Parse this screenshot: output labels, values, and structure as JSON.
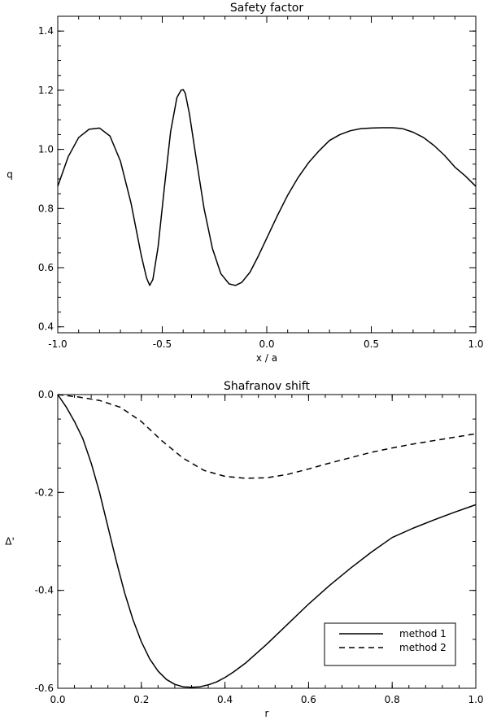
{
  "chart_data": [
    {
      "type": "line",
      "title": "Safety factor",
      "xlabel": "x / a",
      "ylabel": "q",
      "xlim": [
        -1.0,
        1.0
      ],
      "ylim": [
        0.38,
        1.45
      ],
      "xticks": [
        -1.0,
        -0.5,
        0.0,
        0.5,
        1.0
      ],
      "xtick_labels": [
        "-1.0",
        "-0.5",
        "0.0",
        "0.5",
        "1.0"
      ],
      "yticks": [
        0.4,
        0.6,
        0.8,
        1.0,
        1.2,
        1.4
      ],
      "ytick_labels": [
        "0.4",
        "0.6",
        "0.8",
        "1.0",
        "1.2",
        "1.4"
      ],
      "series": [
        {
          "style": "solid",
          "x": [
            -1.0,
            -0.95,
            -0.9,
            -0.85,
            -0.8,
            -0.75,
            -0.7,
            -0.65,
            -0.6,
            -0.575,
            -0.56,
            -0.545,
            -0.52,
            -0.49,
            -0.46,
            -0.43,
            -0.41,
            -0.4,
            -0.39,
            -0.37,
            -0.34,
            -0.3,
            -0.26,
            -0.22,
            -0.18,
            -0.15,
            -0.12,
            -0.08,
            -0.04,
            0.0,
            0.05,
            0.1,
            0.15,
            0.2,
            0.25,
            0.3,
            0.35,
            0.4,
            0.45,
            0.5,
            0.55,
            0.6,
            0.62,
            0.65,
            0.7,
            0.75,
            0.8,
            0.85,
            0.9,
            0.95,
            1.0
          ],
          "y": [
            0.875,
            0.975,
            1.04,
            1.068,
            1.072,
            1.045,
            0.96,
            0.82,
            0.64,
            0.565,
            0.54,
            0.56,
            0.67,
            0.87,
            1.06,
            1.175,
            1.2,
            1.202,
            1.19,
            1.12,
            0.98,
            0.8,
            0.665,
            0.58,
            0.545,
            0.54,
            0.55,
            0.585,
            0.64,
            0.7,
            0.775,
            0.845,
            0.905,
            0.955,
            0.995,
            1.03,
            1.05,
            1.063,
            1.07,
            1.072,
            1.073,
            1.073,
            1.072,
            1.07,
            1.058,
            1.04,
            1.013,
            0.98,
            0.94,
            0.91,
            0.875
          ]
        }
      ],
      "legend": null
    },
    {
      "type": "line",
      "title": "Shafranov shift",
      "xlabel": "r",
      "ylabel": "Δ'",
      "xlim": [
        0.0,
        1.0
      ],
      "ylim": [
        -0.6,
        0.0
      ],
      "xticks": [
        0.0,
        0.2,
        0.4,
        0.6,
        0.8,
        1.0
      ],
      "xtick_labels": [
        "0.0",
        "0.2",
        "0.4",
        "0.6",
        "0.8",
        "1.0"
      ],
      "yticks": [
        0.0,
        -0.2,
        -0.4,
        -0.6
      ],
      "ytick_labels": [
        "0.0",
        "-0.2",
        "-0.4",
        "-0.6"
      ],
      "series": [
        {
          "name": "method 1",
          "style": "solid",
          "x": [
            0.0,
            0.02,
            0.04,
            0.06,
            0.08,
            0.1,
            0.12,
            0.14,
            0.16,
            0.18,
            0.2,
            0.22,
            0.24,
            0.26,
            0.28,
            0.3,
            0.32,
            0.34,
            0.36,
            0.38,
            0.4,
            0.42,
            0.45,
            0.5,
            0.55,
            0.6,
            0.65,
            0.7,
            0.75,
            0.8,
            0.85,
            0.9,
            0.95,
            1.0
          ],
          "y": [
            0.0,
            -0.025,
            -0.055,
            -0.09,
            -0.14,
            -0.2,
            -0.27,
            -0.34,
            -0.405,
            -0.46,
            -0.505,
            -0.54,
            -0.565,
            -0.582,
            -0.592,
            -0.597,
            -0.598,
            -0.597,
            -0.593,
            -0.587,
            -0.578,
            -0.567,
            -0.548,
            -0.51,
            -0.469,
            -0.428,
            -0.39,
            -0.355,
            -0.322,
            -0.292,
            -0.273,
            -0.256,
            -0.24,
            -0.225
          ]
        },
        {
          "name": "method 2",
          "style": "dashed",
          "x": [
            0.0,
            0.05,
            0.1,
            0.15,
            0.2,
            0.25,
            0.3,
            0.35,
            0.4,
            0.45,
            0.5,
            0.55,
            0.6,
            0.65,
            0.7,
            0.75,
            0.8,
            0.85,
            0.9,
            0.95,
            1.0
          ],
          "y": [
            0.0,
            -0.005,
            -0.012,
            -0.026,
            -0.055,
            -0.095,
            -0.13,
            -0.155,
            -0.167,
            -0.171,
            -0.17,
            -0.163,
            -0.152,
            -0.14,
            -0.129,
            -0.118,
            -0.109,
            -0.101,
            -0.094,
            -0.087,
            -0.08
          ]
        }
      ],
      "legend": {
        "position": "bottom-right",
        "entries": [
          "method 1",
          "method 2"
        ]
      }
    }
  ]
}
